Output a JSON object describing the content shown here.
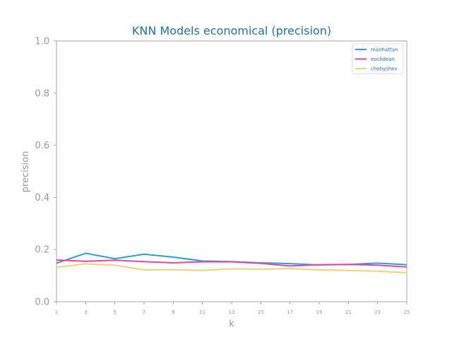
{
  "chart_data": {
    "type": "line",
    "title": "KNN Models economical (precision)",
    "xlabel": "k",
    "ylabel": "precision",
    "x": [
      1,
      3,
      5,
      7,
      9,
      11,
      13,
      15,
      17,
      19,
      21,
      23,
      25
    ],
    "xticks": [
      "1",
      "3",
      "5",
      "7",
      "9",
      "11",
      "13",
      "15",
      "17",
      "19",
      "21",
      "23",
      "25"
    ],
    "yticks": [
      "0.0",
      "0.2",
      "0.4",
      "0.6",
      "0.8",
      "1.0"
    ],
    "xlim": [
      1,
      25
    ],
    "ylim": [
      0,
      1
    ],
    "grid": false,
    "legend_position": "top-right",
    "series": [
      {
        "name": "manhattan",
        "color": "#2ca0d6",
        "values": [
          0.148,
          0.186,
          0.165,
          0.182,
          0.171,
          0.156,
          0.154,
          0.149,
          0.146,
          0.141,
          0.143,
          0.148,
          0.142
        ]
      },
      {
        "name": "euclidean",
        "color": "#dd4aa6",
        "values": [
          0.16,
          0.155,
          0.159,
          0.154,
          0.149,
          0.153,
          0.153,
          0.147,
          0.137,
          0.142,
          0.143,
          0.14,
          0.133
        ]
      },
      {
        "name": "chebyshev",
        "color": "#f2d07a",
        "values": [
          0.132,
          0.145,
          0.14,
          0.122,
          0.123,
          0.12,
          0.126,
          0.125,
          0.127,
          0.122,
          0.12,
          0.117,
          0.111
        ]
      }
    ],
    "colors": {
      "title": "#1f6fb2",
      "axis_text": "#999999",
      "axis_line": "#a6a6a6",
      "legend_text": "#1f6fb2"
    }
  }
}
